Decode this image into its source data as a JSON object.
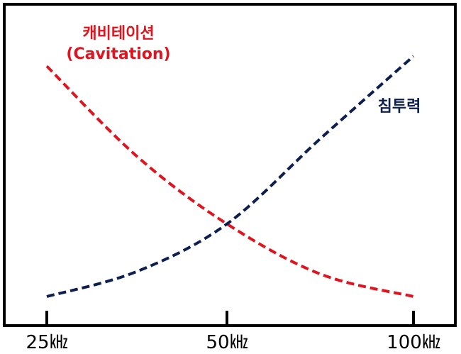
{
  "chart_data": {
    "type": "line",
    "title": "",
    "xlabel": "",
    "ylabel": "",
    "x": [
      25,
      50,
      100
    ],
    "x_tick_labels": [
      "25㎑",
      "50㎑",
      "100㎑"
    ],
    "xlim": [
      25,
      100
    ],
    "ylim": [
      0,
      100
    ],
    "grid": false,
    "legend": "none",
    "series": [
      {
        "name_line1": "캐비테이션",
        "name_line2": "(Cavitation)",
        "color": "#e0141e",
        "style": "dashed",
        "points": [
          [
            25,
            92
          ],
          [
            37.5,
            56
          ],
          [
            50,
            29
          ],
          [
            75,
            9
          ],
          [
            100,
            0
          ]
        ]
      },
      {
        "name": "침투력",
        "color": "#0c1f4f",
        "style": "dashed",
        "points": [
          [
            25,
            0
          ],
          [
            37.5,
            10
          ],
          [
            50,
            29
          ],
          [
            75,
            63
          ],
          [
            100,
            96
          ]
        ]
      }
    ]
  }
}
